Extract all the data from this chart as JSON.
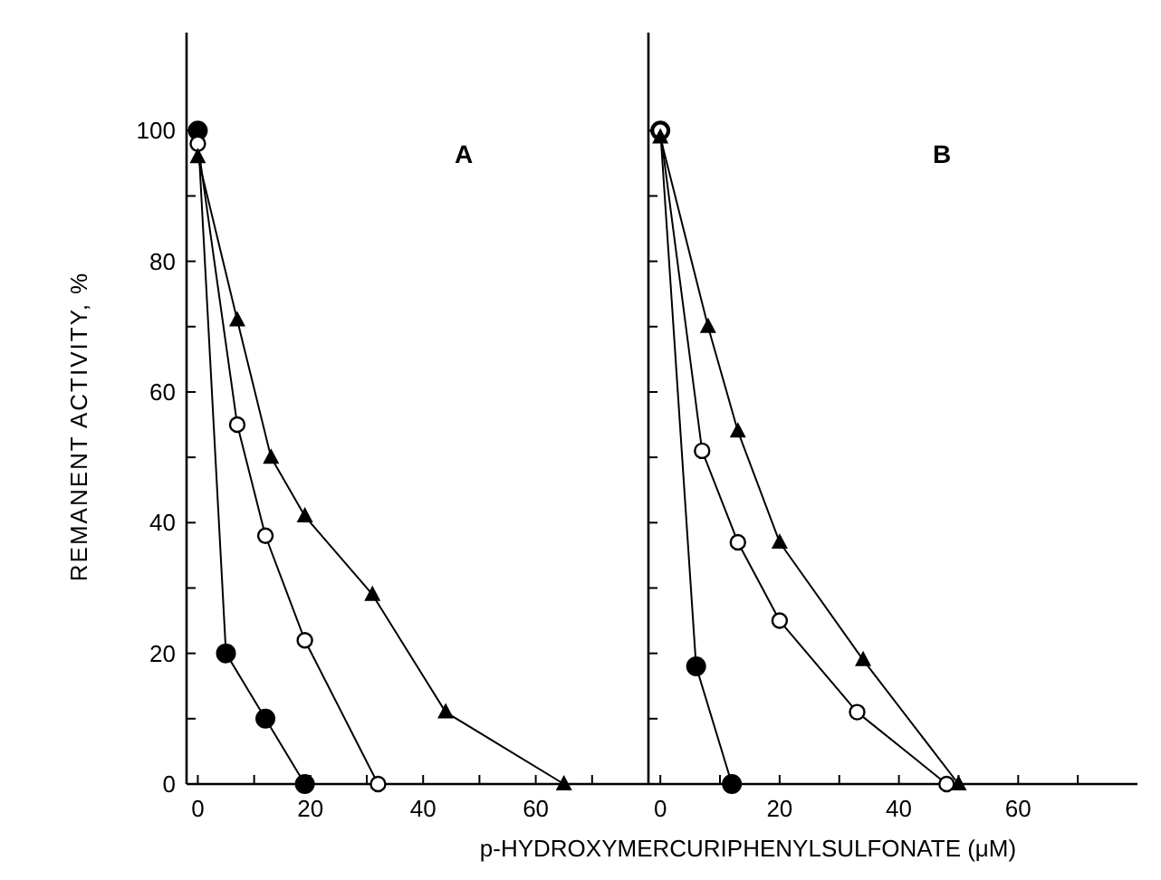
{
  "chart_data": [
    {
      "type": "line",
      "title": "A",
      "ylabel": "REMANENT ACTIVITY, %",
      "xlim": [
        -2,
        80
      ],
      "xticks": [
        0,
        {
          "value": 10,
          "label": null
        },
        20,
        {
          "value": 30,
          "label": null
        },
        40,
        {
          "value": 50,
          "label": null
        },
        60,
        {
          "value": 70,
          "label": null
        }
      ],
      "ylim": [
        0,
        115
      ],
      "yticks": [
        0,
        {
          "value": 10,
          "label": null
        },
        20,
        {
          "value": 30,
          "label": null
        },
        40,
        {
          "value": 50,
          "label": null
        },
        60,
        {
          "value": 70,
          "label": null
        },
        80,
        {
          "value": 90,
          "label": null
        },
        100
      ],
      "series": [
        {
          "color": "#000000",
          "marker": "circle",
          "x": [
            0,
            5,
            12,
            19
          ],
          "values": [
            100,
            20,
            10,
            0
          ]
        },
        {
          "color": "#000000",
          "marker": "circle-open",
          "x": [
            0,
            7,
            12,
            19,
            32
          ],
          "values": [
            98,
            55,
            38,
            22,
            0
          ]
        },
        {
          "color": "#000000",
          "marker": "triangle",
          "x": [
            0,
            7,
            13,
            19,
            31,
            44,
            65
          ],
          "values": [
            96,
            71,
            50,
            41,
            29,
            11,
            0
          ]
        }
      ]
    },
    {
      "type": "line",
      "title": "B",
      "xlabel": "p-HYDROXYMERCURIPHENYLSULFONATE (μM)",
      "tick_labels": "x",
      "xlim": [
        -2,
        80
      ],
      "xticks": [
        0,
        {
          "value": 10,
          "label": null
        },
        20,
        {
          "value": 30,
          "label": null
        },
        40,
        {
          "value": 50,
          "label": null
        },
        60,
        {
          "value": 70,
          "label": null
        }
      ],
      "ylim": [
        0,
        115
      ],
      "yticks": [
        {
          "value": 0,
          "label": null
        },
        {
          "value": 10,
          "label": null
        },
        {
          "value": 20,
          "label": null
        },
        {
          "value": 30,
          "label": null
        },
        {
          "value": 40,
          "label": null
        },
        {
          "value": 50,
          "label": null
        },
        {
          "value": 60,
          "label": null
        },
        {
          "value": 70,
          "label": null
        },
        {
          "value": 80,
          "label": null
        },
        {
          "value": 90,
          "label": null
        },
        {
          "value": 100,
          "label": null
        }
      ],
      "series": [
        {
          "color": "#000000",
          "marker": "circle",
          "x": [
            0,
            6,
            12
          ],
          "values": [
            100,
            18,
            0
          ]
        },
        {
          "color": "#000000",
          "marker": "circle-open",
          "x": [
            0,
            7,
            13,
            20,
            33,
            48
          ],
          "values": [
            100,
            51,
            37,
            25,
            11,
            0
          ]
        },
        {
          "color": "#000000",
          "marker": "triangle",
          "x": [
            0,
            8,
            13,
            20,
            34,
            50
          ],
          "values": [
            99,
            70,
            54,
            37,
            19,
            0
          ]
        }
      ]
    }
  ]
}
